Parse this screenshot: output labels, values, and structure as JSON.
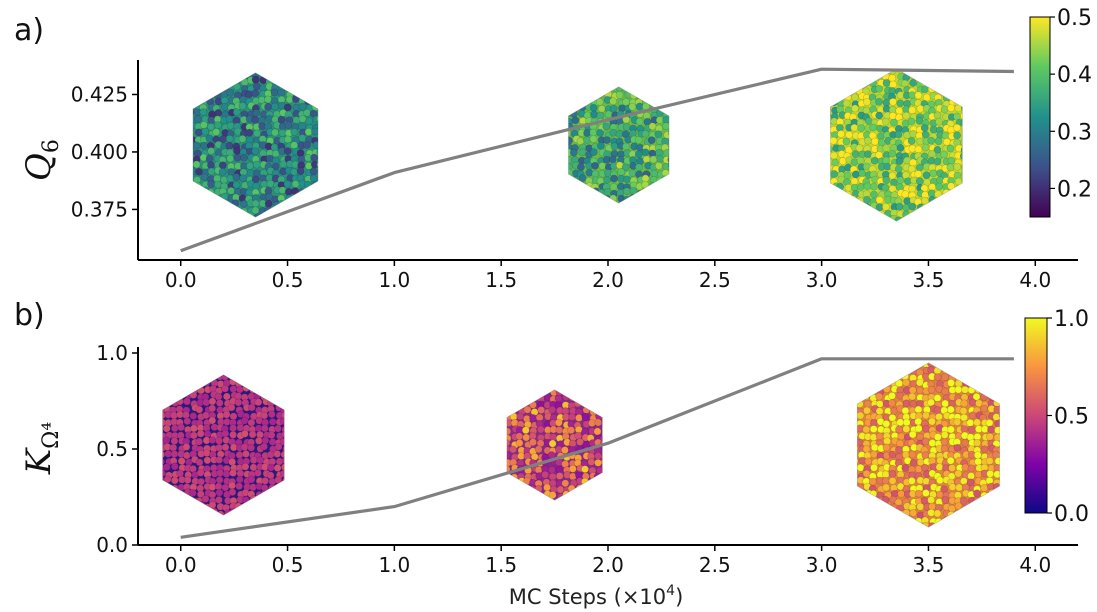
{
  "figure": {
    "xlabel_main": "MC Steps (×10",
    "xlabel_exp": "4",
    "xlabel_close": ")"
  },
  "chart_data": [
    {
      "panel_label": "a)",
      "type": "line",
      "ylabel_main": "Q",
      "ylabel_sub": "6",
      "x": [
        0.0,
        1.0,
        2.0,
        3.0,
        3.9
      ],
      "y": [
        0.357,
        0.391,
        0.414,
        0.436,
        0.435
      ],
      "xlim": [
        -0.2,
        4.2
      ],
      "ylim": [
        0.353,
        0.44
      ],
      "xticks": [
        "0.0",
        "0.5",
        "1.0",
        "1.5",
        "2.0",
        "2.5",
        "3.0",
        "3.5",
        "4.0"
      ],
      "yticks": [
        {
          "v": 0.375,
          "label": "0.375"
        },
        {
          "v": 0.4,
          "label": "0.400"
        },
        {
          "v": 0.425,
          "label": "0.425"
        }
      ],
      "line_color": "#808080",
      "colorbar": {
        "colormap": "viridis",
        "range": [
          0.15,
          0.5
        ],
        "ticks": [
          {
            "v": 0.2,
            "label": "0.2"
          },
          {
            "v": 0.3,
            "label": "0.3"
          },
          {
            "v": 0.4,
            "label": "0.4"
          },
          {
            "v": 0.5,
            "label": "0.5"
          }
        ],
        "colors": [
          "#440154",
          "#3b528b",
          "#21918c",
          "#5ec962",
          "#fde725"
        ]
      },
      "insets": [
        {
          "name": "cluster-step-0",
          "x": 0.35,
          "mean_color": "#2e8f7a"
        },
        {
          "name": "cluster-step-2",
          "x": 2.05,
          "mean_color": "#6cb84a"
        },
        {
          "name": "cluster-step-3",
          "x": 3.35,
          "mean_color": "#c0d732"
        }
      ]
    },
    {
      "panel_label": "b)",
      "type": "line",
      "ylabel_main": "K",
      "ylabel_sub": "Ω⁴",
      "x": [
        0.0,
        1.0,
        2.0,
        3.0,
        3.9
      ],
      "y": [
        0.04,
        0.2,
        0.53,
        0.97,
        0.97
      ],
      "xlim": [
        -0.2,
        4.2
      ],
      "ylim": [
        0.0,
        1.0
      ],
      "xticks": [
        "0.0",
        "0.5",
        "1.0",
        "1.5",
        "2.0",
        "2.5",
        "3.0",
        "3.5",
        "4.0"
      ],
      "yticks": [
        {
          "v": 0.0,
          "label": "0.0"
        },
        {
          "v": 0.5,
          "label": "0.5"
        },
        {
          "v": 1.0,
          "label": "1.0"
        }
      ],
      "line_color": "#808080",
      "colorbar": {
        "colormap": "plasma",
        "range": [
          0.0,
          1.0
        ],
        "ticks": [
          {
            "v": 0.0,
            "label": "0.0"
          },
          {
            "v": 0.5,
            "label": "0.5"
          },
          {
            "v": 1.0,
            "label": "1.0"
          }
        ],
        "colors": [
          "#0d0887",
          "#7e03a8",
          "#cc4778",
          "#f89540",
          "#f0f921"
        ]
      },
      "insets": [
        {
          "name": "cluster-step-0",
          "x": 0.2,
          "mean_color": "#2a1a82"
        },
        {
          "name": "cluster-step-1-75",
          "x": 1.75,
          "mean_color": "#8a2a8c"
        },
        {
          "name": "cluster-step-3-5",
          "x": 3.5,
          "mean_color": "#e0853a"
        }
      ]
    }
  ]
}
